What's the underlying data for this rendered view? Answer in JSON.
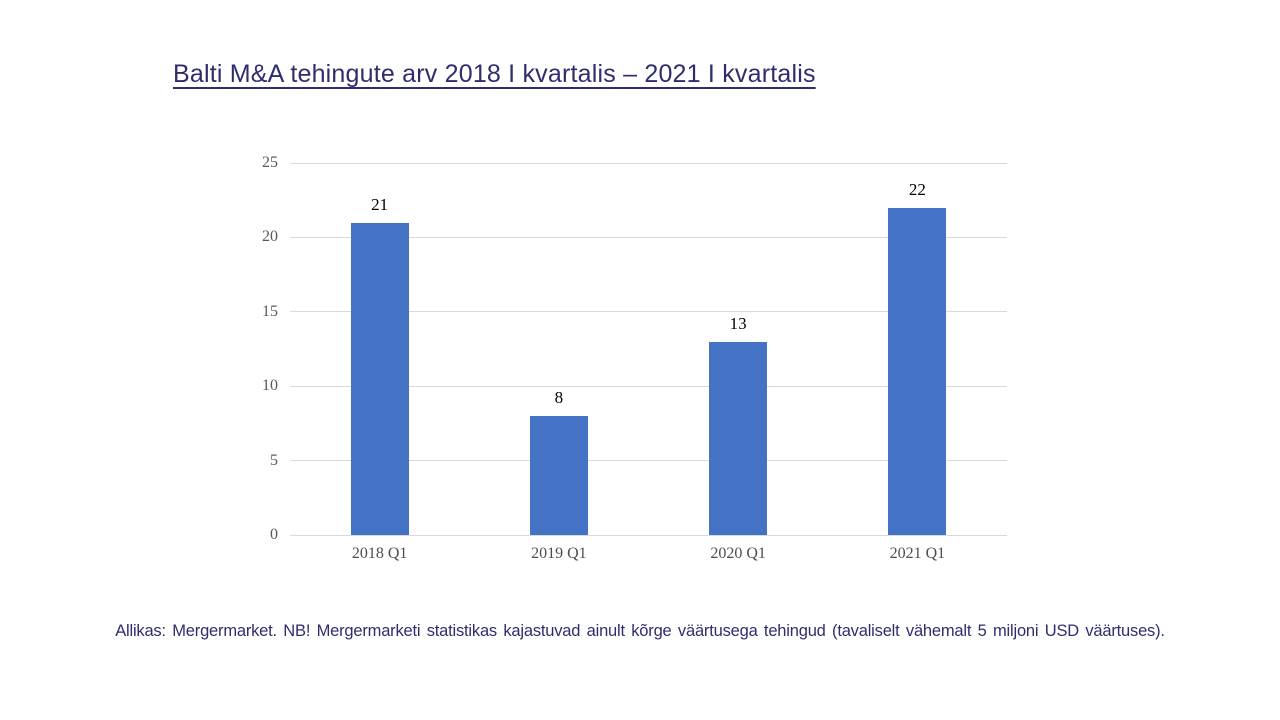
{
  "title": "Balti M&A tehingute arv 2018 I kvartalis – 2021 I kvartalis",
  "footer": {
    "text": "Allikas: Mergermarket. NB! Mergermarketi statistikas kajastuvad ainult kõrge väärtusega tehingud (tavaliselt vähemalt 5 miljoni USD väärtuses)."
  },
  "chart_data": {
    "type": "bar",
    "categories": [
      "2018 Q1",
      "2019 Q1",
      "2020 Q1",
      "2021 Q1"
    ],
    "values": [
      21,
      8,
      13,
      22
    ],
    "title": "Balti M&A tehingute arv 2018 I kvartalis – 2021 I kvartalis",
    "xlabel": "",
    "ylabel": "",
    "ylim": [
      0,
      25
    ],
    "yticks": [
      0,
      5,
      10,
      15,
      20,
      25
    ],
    "grid": true,
    "legend": false,
    "data_labels": true
  },
  "colors": {
    "title_text": "#2E2E6E",
    "footer_text": "#2E2E6E",
    "bar": "#4472C4",
    "gridline": "#D9D9D9",
    "axis_tick_label": "#595959",
    "data_label": "#000000"
  }
}
